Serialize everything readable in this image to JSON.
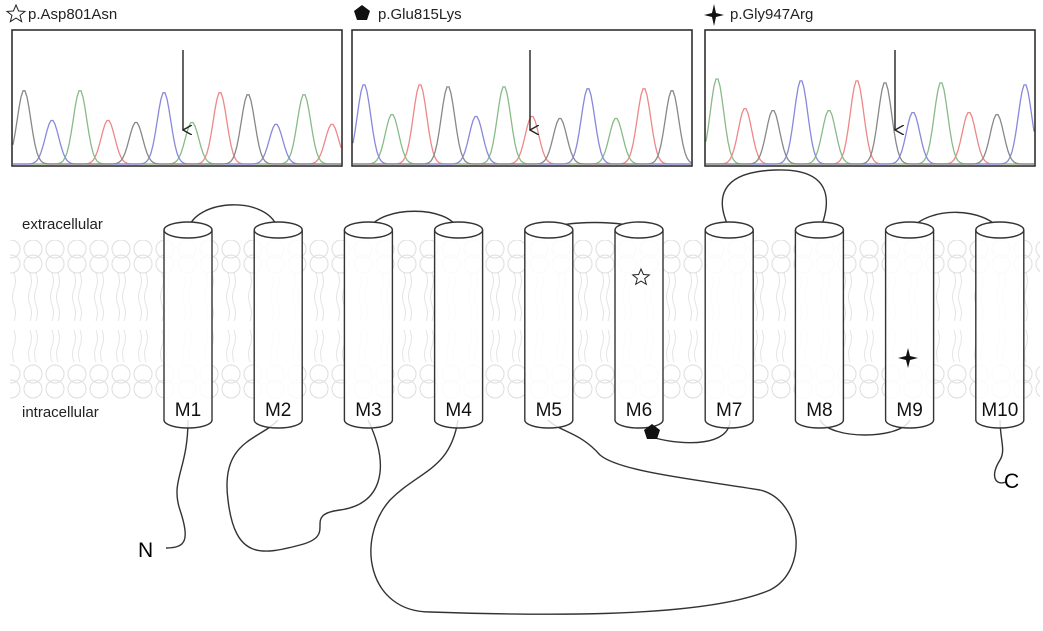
{
  "panels": [
    {
      "label": "p.Asp801Asn"
    },
    {
      "label": "p.Glu815Lys"
    },
    {
      "label": "p.Gly947Arg"
    }
  ],
  "regions": {
    "extracellular": "extracellular",
    "intracellular": "intracellular"
  },
  "helices": [
    "M1",
    "M2",
    "M3",
    "M4",
    "M5",
    "M6",
    "M7",
    "M8",
    "M9",
    "M10"
  ],
  "termini": {
    "n": "N",
    "c": "C"
  }
}
